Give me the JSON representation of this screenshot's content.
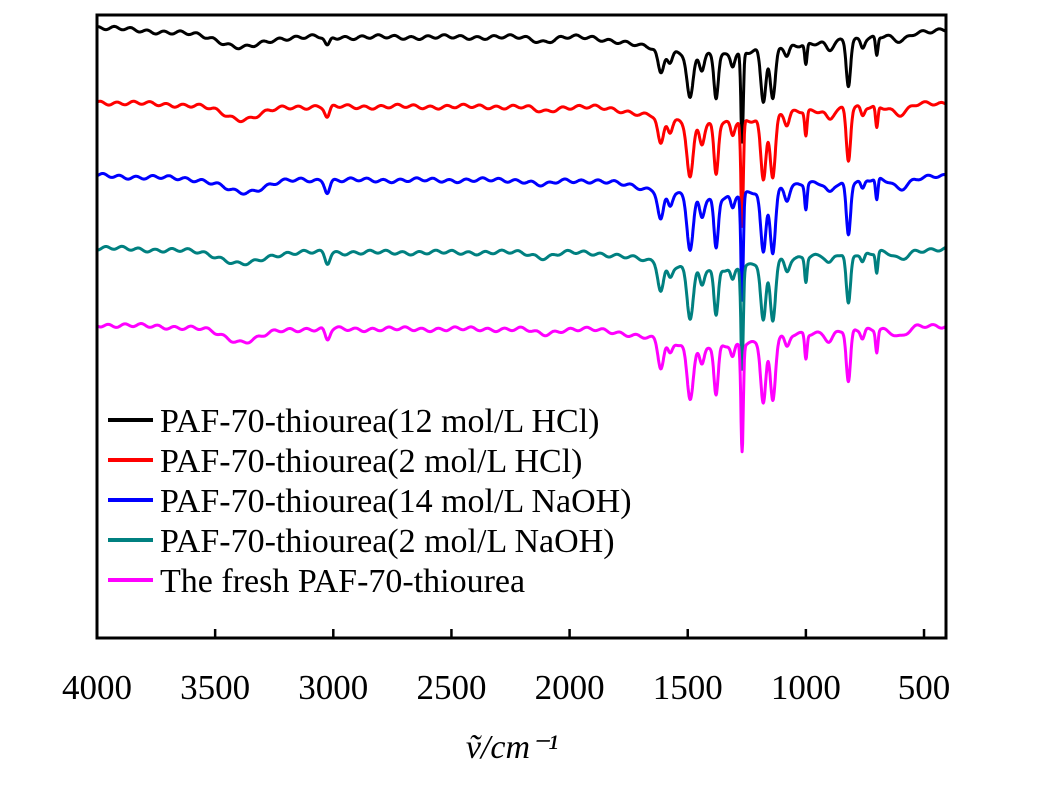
{
  "chart_data": {
    "type": "line",
    "title": "",
    "xlabel": "ṽ/cm⁻¹",
    "ylabel": "",
    "xlim": [
      4000,
      407
    ],
    "ylim": [
      0,
      100
    ],
    "y_unit": "arbitrary (offset transmittance)",
    "x_ticks": [
      4000,
      3500,
      3000,
      2500,
      2000,
      1500,
      1000,
      500
    ],
    "grid": false,
    "legend_position": "bottom-left",
    "peaks": [
      {
        "x": 3385,
        "w": 80,
        "depth": 2.0
      },
      {
        "x": 3025,
        "w": 10,
        "depth": 1.8
      },
      {
        "x": 2110,
        "w": 40,
        "depth": 0.8
      },
      {
        "x": 1400,
        "w": 200,
        "depth": 2.5
      },
      {
        "x": 1614,
        "w": 12,
        "depth": 4.5
      },
      {
        "x": 1575,
        "w": 10,
        "depth": 2.0
      },
      {
        "x": 1490,
        "w": 13,
        "depth": 8.5
      },
      {
        "x": 1440,
        "w": 10,
        "depth": 3.0
      },
      {
        "x": 1380,
        "w": 9,
        "depth": 8.0
      },
      {
        "x": 1310,
        "w": 8,
        "depth": 2.0
      },
      {
        "x": 1270,
        "w": 5,
        "depth": 17.0
      },
      {
        "x": 1180,
        "w": 11,
        "depth": 10.0
      },
      {
        "x": 1140,
        "w": 11,
        "depth": 10.0
      },
      {
        "x": 1080,
        "w": 10,
        "depth": 2.0
      },
      {
        "x": 1000,
        "w": 5,
        "depth": 4.0
      },
      {
        "x": 900,
        "w": 15,
        "depth": 1.5
      },
      {
        "x": 820,
        "w": 9,
        "depth": 8.5
      },
      {
        "x": 760,
        "w": 8,
        "depth": 1.5
      },
      {
        "x": 700,
        "w": 5,
        "depth": 3.5
      },
      {
        "x": 600,
        "w": 30,
        "depth": 1.5
      }
    ],
    "series": [
      {
        "name": "PAF-70-thiourea(12 mol/L HCl)",
        "color": "#000000",
        "baseline": 98.0,
        "scale": 0.85
      },
      {
        "name": "PAF-70-thiourea(2 mol/L HCl)",
        "color": "#ff0000",
        "baseline": 86.0,
        "scale": 1.0
      },
      {
        "name": "PAF-70-thiourea(14 mol/L NaOH)",
        "color": "#0000ff",
        "baseline": 74.2,
        "scale": 1.0
      },
      {
        "name": "PAF-70-thiourea(2 mol/L NaOH)",
        "color": "#008080",
        "baseline": 62.6,
        "scale": 0.95
      },
      {
        "name": "The fresh PAF-70-thiourea",
        "color": "#ff00ff",
        "baseline": 50.3,
        "scale": 1.0
      }
    ]
  }
}
